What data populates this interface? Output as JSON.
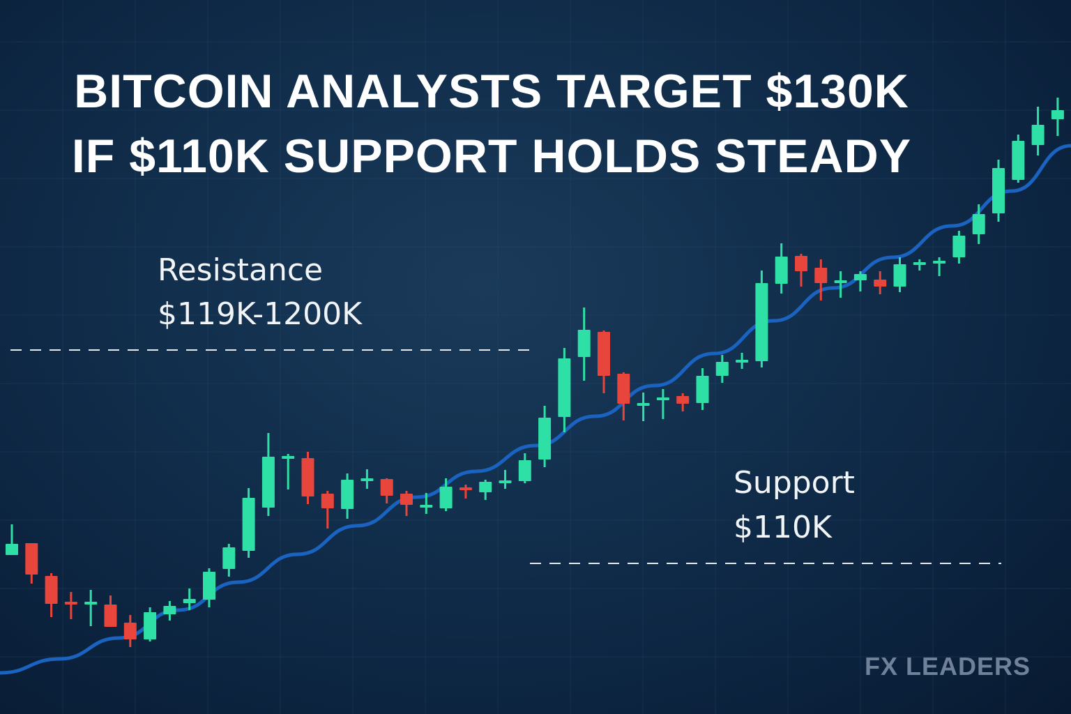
{
  "title": {
    "line1": "BITCOIN ANALYSTS TARGET $130K",
    "line2": "IF $110K SUPPORT HOLDS STEADY"
  },
  "annotations": {
    "resistance_label": "Resistance",
    "resistance_range": "$119K-1200K",
    "support_label": "Support",
    "support_value": "$110K"
  },
  "watermark": "FX LEADERS",
  "colors": {
    "background": "#0e2744",
    "bullish": "#2fe0a6",
    "bearish": "#e8453c",
    "moving_average": "#1b63c0",
    "dashed_level": "#e6ebf0",
    "text": "#ffffff"
  },
  "chart_data": {
    "type": "candlestick",
    "title": "BITCOIN ANALYSTS TARGET $130K IF $110K SUPPORT HOLDS STEADY",
    "xlabel": "",
    "ylabel": "",
    "grid": true,
    "levels": [
      {
        "name": "Resistance",
        "text": "$119K-1200K",
        "style": "dashed"
      },
      {
        "name": "Support",
        "text": "$110K",
        "style": "dashed"
      }
    ],
    "y_unit": "approx. relative price (0-100 scale, no axis printed)",
    "candles": [
      {
        "o": 23.0,
        "h": 25.8,
        "l": 21.6,
        "c": 21.4,
        "dir": "up"
      },
      {
        "o": 23.1,
        "h": 23.1,
        "l": 17.3,
        "c": 18.6,
        "dir": "down"
      },
      {
        "o": 18.4,
        "h": 18.8,
        "l": 12.5,
        "c": 14.4,
        "dir": "down"
      },
      {
        "o": 14.7,
        "h": 16.1,
        "l": 12.2,
        "c": 14.3,
        "dir": "down"
      },
      {
        "o": 14.7,
        "h": 16.4,
        "l": 11.2,
        "c": 14.3,
        "dir": "up"
      },
      {
        "o": 14.3,
        "h": 15.6,
        "l": 11.3,
        "c": 11.1,
        "dir": "down"
      },
      {
        "o": 11.7,
        "h": 12.8,
        "l": 8.2,
        "c": 9.3,
        "dir": "down"
      },
      {
        "o": 9.3,
        "h": 13.9,
        "l": 9.0,
        "c": 13.2,
        "dir": "up"
      },
      {
        "o": 12.9,
        "h": 14.8,
        "l": 12.0,
        "c": 14.1,
        "dir": "up"
      },
      {
        "o": 14.5,
        "h": 16.6,
        "l": 13.5,
        "c": 15.1,
        "dir": "up"
      },
      {
        "o": 15.0,
        "h": 19.5,
        "l": 13.9,
        "c": 19.0,
        "dir": "up"
      },
      {
        "o": 19.4,
        "h": 23.0,
        "l": 18.3,
        "c": 22.5,
        "dir": "up"
      },
      {
        "o": 22.0,
        "h": 31.0,
        "l": 21.0,
        "c": 29.6,
        "dir": "up"
      },
      {
        "o": 28.2,
        "h": 38.9,
        "l": 27.0,
        "c": 35.5,
        "dir": "up"
      },
      {
        "o": 35.6,
        "h": 35.9,
        "l": 30.8,
        "c": 35.3,
        "dir": "up"
      },
      {
        "o": 35.3,
        "h": 36.2,
        "l": 28.7,
        "c": 29.8,
        "dir": "down"
      },
      {
        "o": 30.2,
        "h": 30.6,
        "l": 25.2,
        "c": 28.1,
        "dir": "down"
      },
      {
        "o": 28.0,
        "h": 33.1,
        "l": 26.6,
        "c": 32.2,
        "dir": "up"
      },
      {
        "o": 32.1,
        "h": 33.7,
        "l": 30.9,
        "c": 32.4,
        "dir": "up"
      },
      {
        "o": 32.3,
        "h": 32.4,
        "l": 28.8,
        "c": 29.9,
        "dir": "down"
      },
      {
        "o": 30.2,
        "h": 30.6,
        "l": 27.0,
        "c": 28.6,
        "dir": "down"
      },
      {
        "o": 28.6,
        "h": 30.3,
        "l": 27.3,
        "c": 28.4,
        "dir": "up"
      },
      {
        "o": 28.1,
        "h": 32.4,
        "l": 27.7,
        "c": 31.2,
        "dir": "up"
      },
      {
        "o": 31.1,
        "h": 31.5,
        "l": 29.5,
        "c": 30.9,
        "dir": "down"
      },
      {
        "o": 30.4,
        "h": 32.2,
        "l": 29.3,
        "c": 31.9,
        "dir": "up"
      },
      {
        "o": 31.8,
        "h": 33.6,
        "l": 30.9,
        "c": 32.1,
        "dir": "up"
      },
      {
        "o": 32.0,
        "h": 36.0,
        "l": 31.7,
        "c": 35.0,
        "dir": "up"
      },
      {
        "o": 35.1,
        "h": 42.8,
        "l": 34.0,
        "c": 41.1,
        "dir": "up"
      },
      {
        "o": 41.2,
        "h": 51.1,
        "l": 39.0,
        "c": 49.6,
        "dir": "up"
      },
      {
        "o": 49.8,
        "h": 56.9,
        "l": 46.4,
        "c": 53.7,
        "dir": "up"
      },
      {
        "o": 53.4,
        "h": 53.6,
        "l": 44.6,
        "c": 47.1,
        "dir": "down"
      },
      {
        "o": 47.4,
        "h": 47.6,
        "l": 40.7,
        "c": 43.1,
        "dir": "down"
      },
      {
        "o": 43.2,
        "h": 44.7,
        "l": 40.6,
        "c": 43.1,
        "dir": "up"
      },
      {
        "o": 43.6,
        "h": 45.2,
        "l": 40.9,
        "c": 44.0,
        "dir": "up"
      },
      {
        "o": 44.2,
        "h": 44.6,
        "l": 42.0,
        "c": 43.1,
        "dir": "down"
      },
      {
        "o": 43.2,
        "h": 48.2,
        "l": 42.2,
        "c": 47.1,
        "dir": "up"
      },
      {
        "o": 47.1,
        "h": 50.1,
        "l": 46.1,
        "c": 49.1,
        "dir": "up"
      },
      {
        "o": 49.3,
        "h": 50.4,
        "l": 48.1,
        "c": 49.4,
        "dir": "up"
      },
      {
        "o": 49.2,
        "h": 62.2,
        "l": 48.3,
        "c": 60.4,
        "dir": "up"
      },
      {
        "o": 60.3,
        "h": 66.1,
        "l": 58.9,
        "c": 64.2,
        "dir": "up"
      },
      {
        "o": 64.3,
        "h": 64.6,
        "l": 59.9,
        "c": 62.1,
        "dir": "down"
      },
      {
        "o": 62.6,
        "h": 63.8,
        "l": 57.9,
        "c": 60.4,
        "dir": "down"
      },
      {
        "o": 60.6,
        "h": 62.1,
        "l": 58.3,
        "c": 60.8,
        "dir": "up"
      },
      {
        "o": 60.8,
        "h": 62.1,
        "l": 59.2,
        "c": 61.7,
        "dir": "up"
      },
      {
        "o": 60.9,
        "h": 62.1,
        "l": 58.8,
        "c": 59.9,
        "dir": "down"
      },
      {
        "o": 59.9,
        "h": 64.1,
        "l": 59.1,
        "c": 63.1,
        "dir": "up"
      },
      {
        "o": 63.4,
        "h": 63.8,
        "l": 62.2,
        "c": 63.2,
        "dir": "up"
      },
      {
        "o": 63.2,
        "h": 64.1,
        "l": 61.4,
        "c": 63.6,
        "dir": "up"
      },
      {
        "o": 64.1,
        "h": 67.9,
        "l": 63.2,
        "c": 67.2,
        "dir": "up"
      },
      {
        "o": 67.4,
        "h": 71.7,
        "l": 66.0,
        "c": 70.3,
        "dir": "up"
      },
      {
        "o": 70.4,
        "h": 78.1,
        "l": 69.2,
        "c": 76.9,
        "dir": "up"
      },
      {
        "o": 75.2,
        "h": 81.7,
        "l": 74.8,
        "c": 80.8,
        "dir": "up"
      },
      {
        "o": 80.2,
        "h": 85.7,
        "l": 78.7,
        "c": 83.1,
        "dir": "up"
      },
      {
        "o": 83.9,
        "h": 87.0,
        "l": 81.5,
        "c": 85.2,
        "dir": "up"
      }
    ],
    "moving_average": [
      4.5,
      6.5,
      9.5,
      13.5,
      17.5,
      21.5,
      25.6,
      29.7,
      33.4,
      37.1,
      41.3,
      45.7,
      50.3,
      55.0,
      59.7,
      64.1,
      68.6,
      73.6,
      80.1
    ]
  }
}
